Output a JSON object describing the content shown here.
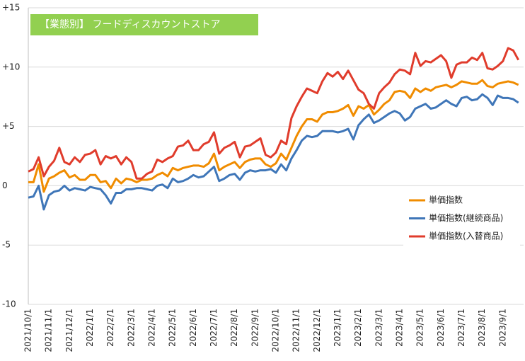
{
  "chart_data": {
    "type": "line",
    "title": "【業態別】 フードディスカウントストア",
    "categories": [
      "2021/10/1",
      null,
      null,
      null,
      "2021/11/1",
      null,
      null,
      null,
      "2021/12/1",
      null,
      null,
      null,
      "2022/1/1",
      null,
      null,
      null,
      "2022/2/1",
      null,
      null,
      null,
      "2022/3/1",
      null,
      null,
      null,
      "2022/4/1",
      null,
      null,
      null,
      "2022/5/1",
      null,
      null,
      null,
      "2022/6/1",
      null,
      null,
      null,
      "2022/7/1",
      null,
      null,
      null,
      "2022/8/1",
      null,
      null,
      null,
      "2022/9/1",
      null,
      null,
      null,
      "2022/10/1",
      null,
      null,
      null,
      "2022/11/1",
      null,
      null,
      null,
      "2022/12/1",
      null,
      null,
      null,
      "2023/1/1",
      null,
      null,
      null,
      "2023/2/1",
      null,
      null,
      null,
      "2023/3/1",
      null,
      null,
      null,
      "2023/4/1",
      null,
      null,
      null,
      "2023/5/1",
      null,
      null,
      null,
      "2023/6/1",
      null,
      null,
      null,
      "2023/7/1",
      null,
      null,
      null,
      "2023/8/1",
      null,
      null,
      null,
      "2023/9/1",
      null,
      null,
      null
    ],
    "series": [
      {
        "name": "単価指数",
        "color": "#f08c00",
        "values": [
          0.3,
          0.3,
          1.8,
          -0.5,
          0.6,
          0.8,
          1.1,
          1.3,
          0.7,
          0.9,
          0.5,
          0.5,
          0.9,
          0.9,
          0.3,
          0.4,
          -0.2,
          0.6,
          0.2,
          0.6,
          0.5,
          0.3,
          0.5,
          0.5,
          0.6,
          0.9,
          1.1,
          0.8,
          1.5,
          1.3,
          1.5,
          1.6,
          1.7,
          1.7,
          1.6,
          1.9,
          2.7,
          1.3,
          1.6,
          1.8,
          2.0,
          1.5,
          2.0,
          2.2,
          2.3,
          2.3,
          1.8,
          1.6,
          1.9,
          2.7,
          2.2,
          3.2,
          4.2,
          5.0,
          5.6,
          5.6,
          5.4,
          6.0,
          6.2,
          6.2,
          6.3,
          6.5,
          6.8,
          5.9,
          6.7,
          6.5,
          6.8,
          6.0,
          6.4,
          6.9,
          7.2,
          7.9,
          8.0,
          7.9,
          7.4,
          8.2,
          7.9,
          8.2,
          8.0,
          8.3,
          8.4,
          8.5,
          8.3,
          8.5,
          8.8,
          8.7,
          8.6,
          8.6,
          8.9,
          8.4,
          8.3,
          8.6,
          8.7,
          8.8,
          8.7,
          8.5
        ]
      },
      {
        "name": "単価指数(継続商品)",
        "color": "#3f76b8",
        "values": [
          -1.0,
          -0.9,
          0.0,
          -2.0,
          -0.8,
          -0.5,
          -0.4,
          0.0,
          -0.4,
          -0.2,
          -0.3,
          -0.4,
          -0.1,
          -0.2,
          -0.3,
          -0.8,
          -1.5,
          -0.6,
          -0.6,
          -0.3,
          -0.3,
          -0.2,
          -0.2,
          -0.3,
          -0.4,
          0.0,
          0.1,
          -0.2,
          0.6,
          0.3,
          0.4,
          0.6,
          0.9,
          0.7,
          0.8,
          1.2,
          1.6,
          0.4,
          0.6,
          0.9,
          1.0,
          0.5,
          1.1,
          1.3,
          1.2,
          1.3,
          1.3,
          1.4,
          1.1,
          1.8,
          1.3,
          2.3,
          3.0,
          3.8,
          4.2,
          4.1,
          4.2,
          4.6,
          4.6,
          4.6,
          4.5,
          4.6,
          4.8,
          3.9,
          5.1,
          5.6,
          6.0,
          5.3,
          5.5,
          5.8,
          6.1,
          6.3,
          6.1,
          5.5,
          5.8,
          6.5,
          6.7,
          6.9,
          6.5,
          6.6,
          6.9,
          7.2,
          6.9,
          6.7,
          7.4,
          7.5,
          7.2,
          7.3,
          7.7,
          7.4,
          6.8,
          7.6,
          7.4,
          7.4,
          7.3,
          7.0
        ]
      },
      {
        "name": "単価指数(入替商品)",
        "color": "#e03c2c",
        "values": [
          1.2,
          1.4,
          2.4,
          0.8,
          1.6,
          2.1,
          3.2,
          2.0,
          1.8,
          2.4,
          2.0,
          2.6,
          2.7,
          3.0,
          1.8,
          2.5,
          2.3,
          2.5,
          1.8,
          2.4,
          2.0,
          0.6,
          0.6,
          1.0,
          1.2,
          2.2,
          2.0,
          2.3,
          2.5,
          3.3,
          3.4,
          3.8,
          3.0,
          3.0,
          3.5,
          3.7,
          4.5,
          2.7,
          3.2,
          3.4,
          3.7,
          2.4,
          3.3,
          3.4,
          3.7,
          4.0,
          2.6,
          2.4,
          2.8,
          3.8,
          3.5,
          5.7,
          6.7,
          7.5,
          8.2,
          8.0,
          7.8,
          8.8,
          9.5,
          9.2,
          9.6,
          9.0,
          9.7,
          8.9,
          8.1,
          7.8,
          6.9,
          6.5,
          7.8,
          8.3,
          8.7,
          9.4,
          9.8,
          9.7,
          9.4,
          11.2,
          10.1,
          10.5,
          10.4,
          10.7,
          11.0,
          10.5,
          9.1,
          10.2,
          10.4,
          10.4,
          10.8,
          10.6,
          11.2,
          9.9,
          9.8,
          10.1,
          10.5,
          11.6,
          11.4,
          10.6
        ]
      }
    ],
    "ylim": [
      -10,
      15
    ],
    "yticks": [
      {
        "value": 15,
        "label": "+15"
      },
      {
        "value": 10,
        "label": "+10"
      },
      {
        "value": 5,
        "label": "+5"
      },
      0,
      -5,
      -10
    ],
    "grid": true,
    "legend": "right"
  }
}
